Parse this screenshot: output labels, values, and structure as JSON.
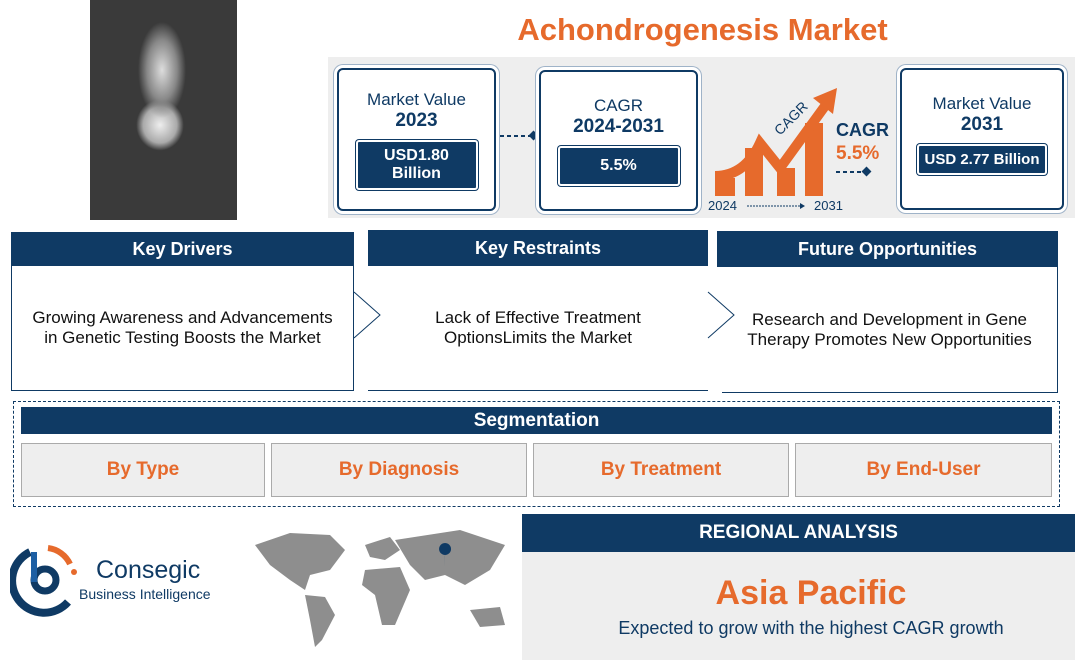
{
  "title": "Achondrogenesis Market",
  "metrics": [
    {
      "label": "Market Value",
      "period": "2023",
      "value": "USD1.80 Billion"
    },
    {
      "label": "CAGR",
      "period": "2024-2031",
      "value": "5.5%"
    },
    {
      "label": "Market Value",
      "period": "2031",
      "value": "USD 2.77 Billion"
    }
  ],
  "cagr_graphic": {
    "arrow_label": "CAGR",
    "label": "CAGR",
    "value": "5.5%",
    "start_year": "2024",
    "end_year": "2031"
  },
  "sections": [
    {
      "title": "Key Drivers",
      "text": "Growing Awareness and Advancements in Genetic Testing Boosts the Market"
    },
    {
      "title": "Key Restraints",
      "text": "Lack of Effective Treatment OptionsLimits the Market"
    },
    {
      "title": "Future Opportunities",
      "text": "Research and Development in Gene Therapy Promotes New Opportunities"
    }
  ],
  "segmentation": {
    "title": "Segmentation",
    "items": [
      "By Type",
      "By Diagnosis",
      "By Treatment",
      "By End-User"
    ]
  },
  "logo": {
    "name": "Consegic",
    "tagline": "Business Intelligence"
  },
  "regional": {
    "header": "REGIONAL ANALYSIS",
    "region": "Asia Pacific",
    "text": "Expected to grow with the highest CAGR growth"
  },
  "colors": {
    "navy": "#0f3a64",
    "orange": "#e66a2c",
    "panel": "#eeeeee"
  }
}
